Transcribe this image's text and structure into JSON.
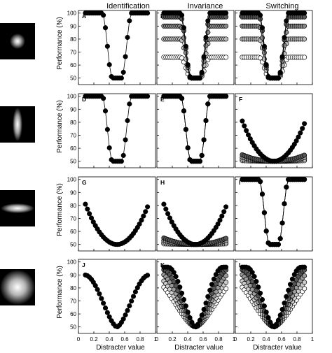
{
  "figure": {
    "column_titles": [
      "Identification",
      "Invariance",
      "Switching"
    ],
    "ylabel": "Performance (%)",
    "xlabel": "Distracter value",
    "stimulus_icons": [
      "small-gaussian-blob-icon",
      "vertical-bar-blob-icon",
      "horizontal-bar-blob-icon",
      "large-gaussian-blob-icon"
    ]
  },
  "chart_data": [
    {
      "panel": "A",
      "type": "scatter",
      "title": "",
      "xlim": [
        0,
        1
      ],
      "ylim": [
        45,
        102
      ],
      "yticks": [
        50,
        60,
        70,
        80,
        90,
        100
      ],
      "xticks": [
        0,
        0.2,
        0.4,
        0.6,
        0.8,
        1
      ],
      "xticklabels": [
        "0",
        "0.2",
        "0.4",
        "0.6",
        "0.8",
        "1"
      ],
      "series": [
        {
          "shape": "v",
          "fill": "#000000",
          "low": 50,
          "high": 100
        }
      ]
    },
    {
      "panel": "B",
      "type": "scatter",
      "title": "",
      "xlim": [
        0,
        1
      ],
      "ylim": [
        45,
        102
      ],
      "yticks": [
        50,
        60,
        70,
        80,
        90,
        100
      ],
      "xticks": [
        0,
        0.2,
        0.4,
        0.6,
        0.8,
        1
      ],
      "xticklabels": [
        "0",
        "0.2",
        "0.4",
        "0.6",
        "0.8",
        "1"
      ],
      "series": [
        {
          "shape": "v",
          "fill": "#000000",
          "low": 50,
          "high": 100
        },
        {
          "shape": "v",
          "fill": "#555555",
          "low": 50,
          "high": 97
        },
        {
          "shape": "v",
          "fill": "#888888",
          "low": 50,
          "high": 90
        },
        {
          "shape": "v",
          "fill": "#bbbbbb",
          "low": 50,
          "high": 80
        },
        {
          "shape": "v",
          "fill": "#ffffff",
          "low": 50,
          "high": 66
        }
      ]
    },
    {
      "panel": "C",
      "type": "scatter",
      "title": "",
      "xlim": [
        0,
        1
      ],
      "ylim": [
        45,
        102
      ],
      "yticks": [
        50,
        60,
        70,
        80,
        90,
        100
      ],
      "xticks": [
        0,
        0.2,
        0.4,
        0.6,
        0.8,
        1
      ],
      "xticklabels": [
        "0",
        "0.2",
        "0.4",
        "0.6",
        "0.8",
        "1"
      ],
      "series": [
        {
          "shape": "v",
          "fill": "#000000",
          "low": 50,
          "high": 100
        },
        {
          "shape": "v",
          "fill": "#555555",
          "low": 50,
          "high": 97
        },
        {
          "shape": "v",
          "fill": "#888888",
          "low": 50,
          "high": 90
        },
        {
          "shape": "v",
          "fill": "#bbbbbb",
          "low": 50,
          "high": 80
        },
        {
          "shape": "v",
          "fill": "#ffffff",
          "low": 50,
          "high": 66
        }
      ]
    },
    {
      "panel": "D",
      "type": "scatter",
      "title": "",
      "xlim": [
        0,
        1
      ],
      "ylim": [
        45,
        102
      ],
      "yticks": [
        50,
        60,
        70,
        80,
        90,
        100
      ],
      "xticks": [
        0,
        0.2,
        0.4,
        0.6,
        0.8,
        1
      ],
      "xticklabels": [
        "0",
        "0.2",
        "0.4",
        "0.6",
        "0.8",
        "1"
      ],
      "series": [
        {
          "shape": "v",
          "fill": "#000000",
          "low": 50,
          "high": 100
        }
      ]
    },
    {
      "panel": "E",
      "type": "scatter",
      "title": "",
      "xlim": [
        0,
        1
      ],
      "ylim": [
        45,
        102
      ],
      "yticks": [
        50,
        60,
        70,
        80,
        90,
        100
      ],
      "xticks": [
        0,
        0.2,
        0.4,
        0.6,
        0.8,
        1
      ],
      "xticklabels": [
        "0",
        "0.2",
        "0.4",
        "0.6",
        "0.8",
        "1"
      ],
      "series": [
        {
          "shape": "v",
          "fill": "#000000",
          "low": 50,
          "high": 100
        },
        {
          "shape": "v",
          "fill": "#777777",
          "low": 50,
          "high": 100
        },
        {
          "shape": "v",
          "fill": "#ffffff",
          "low": 50,
          "high": 100
        }
      ]
    },
    {
      "panel": "F",
      "type": "scatter",
      "title": "",
      "xlim": [
        0,
        1
      ],
      "ylim": [
        45,
        102
      ],
      "yticks": [
        50,
        60,
        70,
        80,
        90,
        100
      ],
      "xticks": [
        0,
        0.2,
        0.4,
        0.6,
        0.8,
        1
      ],
      "xticklabels": [
        "0",
        "0.2",
        "0.4",
        "0.6",
        "0.8",
        "1"
      ],
      "series": [
        {
          "shape": "u",
          "fill": "#000000",
          "low": 50,
          "high": 81
        },
        {
          "shape": "u",
          "fill": "#555555",
          "low": 50,
          "high": 55
        },
        {
          "shape": "u",
          "fill": "#999999",
          "low": 50,
          "high": 53
        },
        {
          "shape": "u",
          "fill": "#cccccc",
          "low": 50,
          "high": 51.5
        },
        {
          "shape": "u",
          "fill": "#ffffff",
          "low": 50,
          "high": 50.5
        }
      ]
    },
    {
      "panel": "G",
      "type": "scatter",
      "title": "",
      "xlim": [
        0,
        1
      ],
      "ylim": [
        45,
        102
      ],
      "yticks": [
        50,
        60,
        70,
        80,
        90,
        100
      ],
      "xticks": [
        0,
        0.2,
        0.4,
        0.6,
        0.8,
        1
      ],
      "xticklabels": [
        "0",
        "0.2",
        "0.4",
        "0.6",
        "0.8",
        "1"
      ],
      "series": [
        {
          "shape": "u",
          "fill": "#000000",
          "low": 50,
          "high": 81
        }
      ]
    },
    {
      "panel": "H",
      "type": "scatter",
      "title": "",
      "xlim": [
        0,
        1
      ],
      "ylim": [
        45,
        102
      ],
      "yticks": [
        50,
        60,
        70,
        80,
        90,
        100
      ],
      "xticks": [
        0,
        0.2,
        0.4,
        0.6,
        0.8,
        1
      ],
      "xticklabels": [
        "0",
        "0.2",
        "0.4",
        "0.6",
        "0.8",
        "1"
      ],
      "series": [
        {
          "shape": "u",
          "fill": "#000000",
          "low": 50,
          "high": 81
        },
        {
          "shape": "u",
          "fill": "#555555",
          "low": 50,
          "high": 55
        },
        {
          "shape": "u",
          "fill": "#999999",
          "low": 50,
          "high": 53
        },
        {
          "shape": "u",
          "fill": "#cccccc",
          "low": 50,
          "high": 51.5
        },
        {
          "shape": "u",
          "fill": "#ffffff",
          "low": 50,
          "high": 50.5
        }
      ]
    },
    {
      "panel": "I",
      "type": "scatter",
      "title": "",
      "xlim": [
        0,
        1
      ],
      "ylim": [
        45,
        102
      ],
      "yticks": [
        50,
        60,
        70,
        80,
        90,
        100
      ],
      "xticks": [
        0,
        0.2,
        0.4,
        0.6,
        0.8,
        1
      ],
      "xticklabels": [
        "0",
        "0.2",
        "0.4",
        "0.6",
        "0.8",
        "1"
      ],
      "series": [
        {
          "shape": "v",
          "fill": "#000000",
          "low": 50,
          "high": 100
        },
        {
          "shape": "v",
          "fill": "#777777",
          "low": 50,
          "high": 100
        },
        {
          "shape": "v",
          "fill": "#ffffff",
          "low": 50,
          "high": 100
        }
      ]
    },
    {
      "panel": "J",
      "type": "scatter",
      "title": "",
      "xlim": [
        0,
        1
      ],
      "ylim": [
        45,
        102
      ],
      "yticks": [
        50,
        60,
        70,
        80,
        90,
        100
      ],
      "xticks": [
        0,
        0.2,
        0.4,
        0.6,
        0.8,
        1
      ],
      "xticklabels": [
        "0",
        "0.2",
        "0.4",
        "0.6",
        "0.8",
        "1"
      ],
      "series": [
        {
          "shape": "bell",
          "fill": "#000000",
          "low": 50,
          "high": 90
        }
      ]
    },
    {
      "panel": "K",
      "type": "scatter",
      "title": "",
      "xlim": [
        0,
        1
      ],
      "ylim": [
        45,
        102
      ],
      "yticks": [
        50,
        60,
        70,
        80,
        90,
        100
      ],
      "xticks": [
        0,
        0.2,
        0.4,
        0.6,
        0.8,
        1
      ],
      "xticklabels": [
        "0",
        "0.2",
        "0.4",
        "0.6",
        "0.8",
        "1"
      ],
      "series": [
        {
          "shape": "bellw",
          "fill": "#000000",
          "low": 50,
          "high": 96,
          "width": 0.85
        },
        {
          "shape": "bellw",
          "fill": "#555555",
          "low": 50,
          "high": 94,
          "width": 1.0
        },
        {
          "shape": "bellw",
          "fill": "#999999",
          "low": 50,
          "high": 92,
          "width": 1.15
        },
        {
          "shape": "bellw",
          "fill": "#cccccc",
          "low": 50,
          "high": 90,
          "width": 1.3
        },
        {
          "shape": "bellw",
          "fill": "#ffffff",
          "low": 50,
          "high": 88,
          "width": 1.45
        }
      ]
    },
    {
      "panel": "L",
      "type": "scatter",
      "title": "",
      "xlim": [
        0,
        1
      ],
      "ylim": [
        45,
        102
      ],
      "yticks": [
        50,
        60,
        70,
        80,
        90,
        100
      ],
      "xticks": [
        0,
        0.2,
        0.4,
        0.6,
        0.8,
        1
      ],
      "xticklabels": [
        "0",
        "0.2",
        "0.4",
        "0.6",
        "0.8",
        "1"
      ],
      "series": [
        {
          "shape": "bellw",
          "fill": "#000000",
          "low": 50,
          "high": 96,
          "width": 0.85
        },
        {
          "shape": "bellw",
          "fill": "#555555",
          "low": 50,
          "high": 94,
          "width": 1.0
        },
        {
          "shape": "bellw",
          "fill": "#999999",
          "low": 50,
          "high": 92,
          "width": 1.15
        },
        {
          "shape": "bellw",
          "fill": "#cccccc",
          "low": 50,
          "high": 90,
          "width": 1.3
        },
        {
          "shape": "bellw",
          "fill": "#ffffff",
          "low": 50,
          "high": 88,
          "width": 1.45
        }
      ]
    }
  ]
}
